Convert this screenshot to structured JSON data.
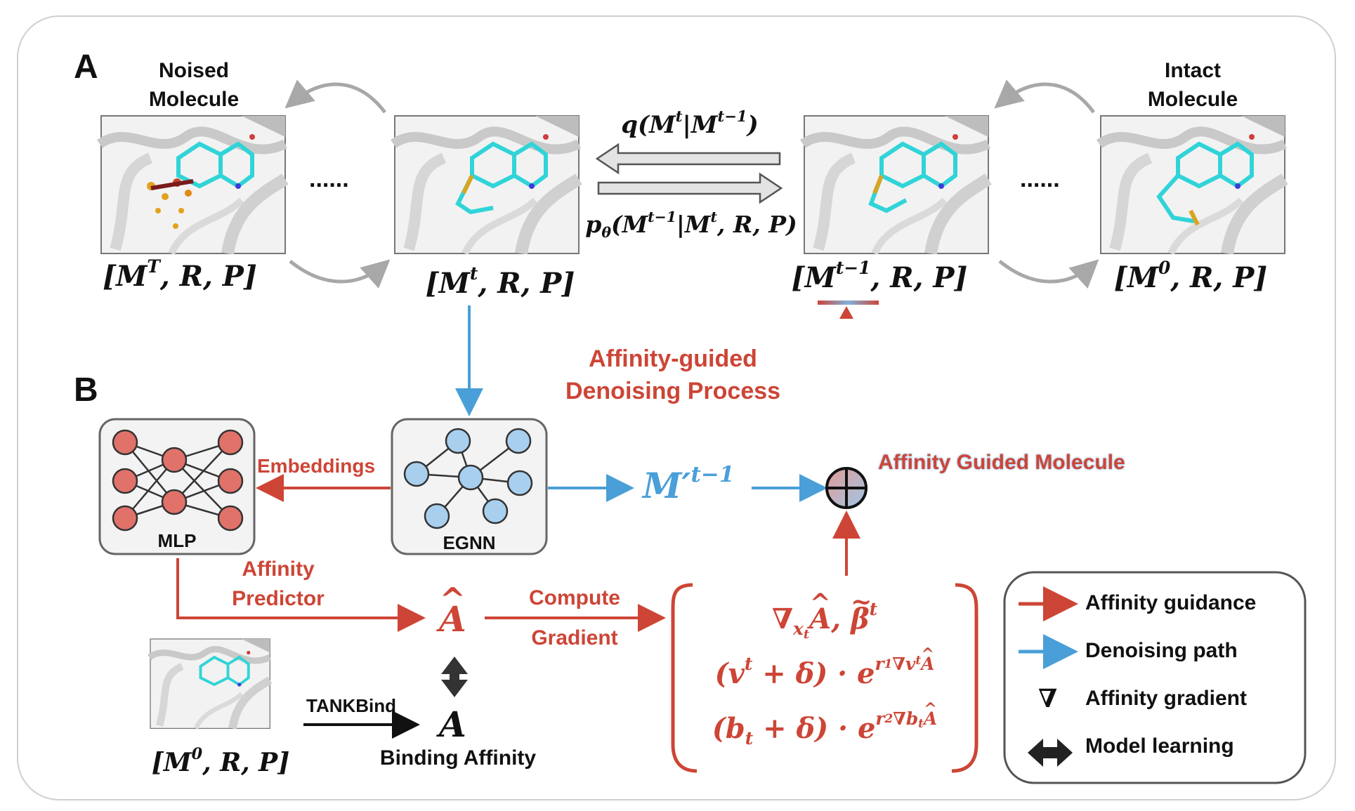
{
  "panels": {
    "a": "A",
    "b": "B"
  },
  "top": {
    "noised_caption": [
      "Noised",
      "Molecule"
    ],
    "intact_caption": [
      "Intact",
      "Molecule"
    ],
    "ellipsis_left": "......",
    "ellipsis_right": "......",
    "states": [
      {
        "base": "M",
        "sup": "T",
        "rest": ", R, P"
      },
      {
        "base": "M",
        "sup": "t",
        "rest": ", R, P"
      },
      {
        "base": "M",
        "sup": "t−1",
        "rest": ", R, P"
      },
      {
        "base": "M",
        "sup": "0",
        "rest": ", R, P"
      }
    ],
    "forward_process": {
      "pre": "q(M",
      "s1": "t",
      "mid": "|M",
      "s2": "t−1",
      "post": ")"
    },
    "reverse_process": {
      "pre": "p",
      "sub": "θ",
      "mid1": "(M",
      "s1": "t−1",
      "mid2": "|M",
      "s2": "t",
      "post": ", R, P)"
    }
  },
  "middle": {
    "process_title": [
      "Affinity-guided",
      "Denoising Process"
    ],
    "embeddings": "Embeddings",
    "mlp": "MLP",
    "egnn": "EGNN",
    "m_prime": {
      "base": "M′",
      "sup": "t−1"
    },
    "guided_molecule": "Affinity Guided Molecule"
  },
  "bottom": {
    "affinity_predictor": [
      "Affinity",
      "Predictor"
    ],
    "a_hat": "A",
    "compute_gradient": [
      "Compute",
      "Gradient"
    ],
    "tankbind": "TANKBind",
    "a_true": "A",
    "binding_affinity": "Binding Affinity",
    "small_state": {
      "base": "M",
      "sup": "0",
      "rest": ", R, P"
    },
    "formula": {
      "line1": {
        "nabla": "∇",
        "x": "x",
        "t": "t",
        "a": "A",
        "comma": ", ",
        "beta": "β",
        "sup": "t"
      },
      "line2": {
        "pre": "(v",
        "sup1": "t",
        "mid": " + δ) · e",
        "r": "r",
        "rsub": "1",
        "nabla": "∇",
        "v": "v",
        "vsup": "t",
        "a": "A"
      },
      "line3": {
        "pre": "(b",
        "sub1": "t",
        "mid": " + δ) · e",
        "r": "r",
        "rsub": "2",
        "nabla": "∇",
        "b": "b",
        "bsub": "t",
        "a": "A"
      }
    }
  },
  "legend": {
    "items": [
      {
        "label": "Affinity guidance"
      },
      {
        "label": "Denoising path"
      },
      {
        "label": "Affinity gradient",
        "symbol": "∇"
      },
      {
        "label": "Model learning"
      }
    ]
  },
  "colors": {
    "red": "#cd4536",
    "blue": "#4a9fd8",
    "node_red": "#e0726a",
    "node_blue": "#a8cfee",
    "gray_arrow": "#a8a8a8"
  }
}
